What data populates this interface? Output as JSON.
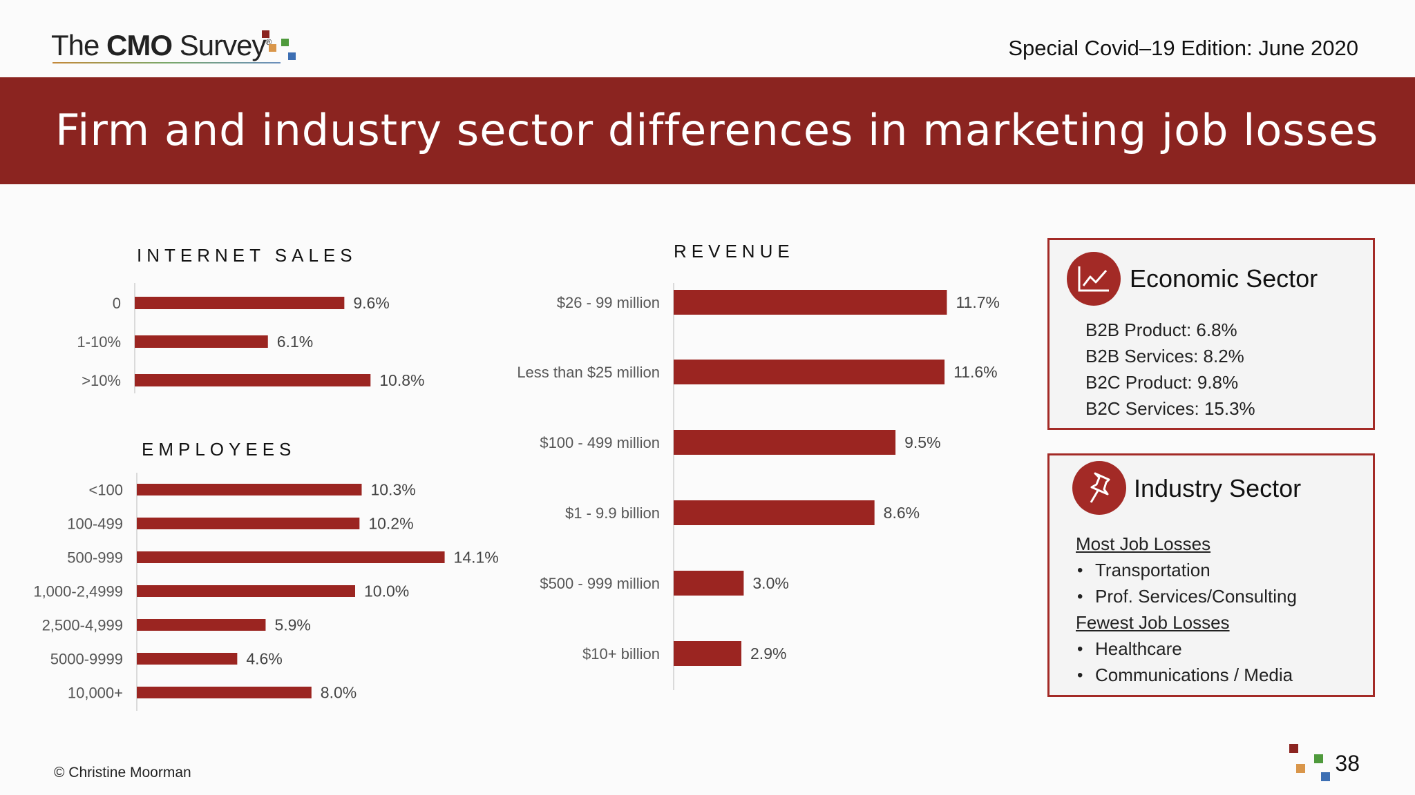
{
  "header": {
    "logo": {
      "prefix": "The ",
      "bold": "CMO",
      "suffix": " Survey",
      "mark": "®"
    },
    "edition": "Special Covid–19 Edition: June 2020",
    "title": "Firm and industry sector differences in marketing job losses"
  },
  "colors": {
    "bar": "#9b2521",
    "banner": "#8b2420",
    "accent": "#a32a26"
  },
  "chart_data": [
    {
      "type": "bar",
      "orientation": "horizontal",
      "title": "INTERNET SALES",
      "categories": [
        "0",
        "1-10%",
        ">10%"
      ],
      "values": [
        9.6,
        6.1,
        10.8
      ],
      "labels": [
        "9.6%",
        "6.1%",
        "10.8%"
      ],
      "unit": "%"
    },
    {
      "type": "bar",
      "orientation": "horizontal",
      "title": "EMPLOYEES",
      "categories": [
        "<100",
        "100-499",
        "500-999",
        "1,000-2,4999",
        "2,500-4,999",
        "5000-9999",
        "10,000+"
      ],
      "values": [
        10.3,
        10.2,
        14.1,
        10.0,
        5.9,
        4.6,
        8.0
      ],
      "labels": [
        "10.3%",
        "10.2%",
        "14.1%",
        "10.0%",
        "5.9%",
        "4.6%",
        "8.0%"
      ],
      "unit": "%"
    },
    {
      "type": "bar",
      "orientation": "horizontal",
      "title": "REVENUE",
      "categories": [
        "$26 - 99 million",
        "Less than $25 million",
        "$100 - 499 million",
        "$1 - 9.9 billion",
        "$500 - 999 million",
        "$10+ billion"
      ],
      "values": [
        11.7,
        11.6,
        9.5,
        8.6,
        3.0,
        2.9
      ],
      "labels": [
        "11.7%",
        "11.6%",
        "9.5%",
        "8.6%",
        "3.0%",
        "2.9%"
      ],
      "unit": "%"
    }
  ],
  "economic_box": {
    "icon": "line-chart-icon",
    "title": "Economic Sector",
    "lines": [
      "B2B Product: 6.8%",
      "B2B Services: 8.2%",
      "B2C Product: 9.8%",
      "B2C Services: 15.3%"
    ]
  },
  "industry_box": {
    "icon": "pushpin-icon",
    "title": "Industry Sector",
    "most_heading": "Most Job Losses",
    "most_items": [
      "Transportation",
      "Prof. Services/Consulting"
    ],
    "fewest_heading": "Fewest Job Losses",
    "fewest_items": [
      "Healthcare",
      "Communications / Media"
    ],
    "bullet": "•"
  },
  "footer": {
    "copyright": "© Christine Moorman",
    "page": "38"
  }
}
